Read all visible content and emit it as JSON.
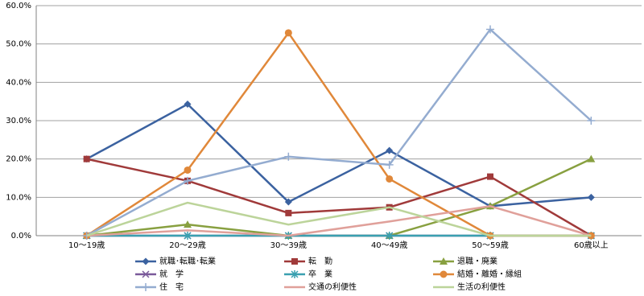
{
  "chart_data": {
    "type": "line",
    "categories": [
      "10～19歳",
      "20～29歳",
      "30～39歳",
      "40～49歳",
      "50～59歳",
      "60歳以上"
    ],
    "ylim": [
      0,
      60
    ],
    "yticks": [
      {
        "value": 0,
        "label": "0.0%"
      },
      {
        "value": 10,
        "label": "10.0%"
      },
      {
        "value": 20,
        "label": "20.0%"
      },
      {
        "value": 30,
        "label": "30.0%"
      },
      {
        "value": 40,
        "label": "40.0%"
      },
      {
        "value": 50,
        "label": "50.0%"
      },
      {
        "value": 60,
        "label": "60.0%"
      }
    ],
    "grid": true,
    "series": [
      {
        "name": "就職･転職･転業",
        "color": "#3b62a0",
        "marker": "diamond",
        "values": [
          20.0,
          34.3,
          8.8,
          22.2,
          7.7,
          10.0
        ]
      },
      {
        "name": "転　勤",
        "color": "#a03a3a",
        "marker": "square",
        "values": [
          20.0,
          14.3,
          5.9,
          7.4,
          15.4,
          0
        ]
      },
      {
        "name": "退職・廃業",
        "color": "#88a040",
        "marker": "triangle",
        "values": [
          0,
          2.9,
          0,
          0,
          7.7,
          20.0
        ]
      },
      {
        "name": "就　学",
        "color": "#7a5a9a",
        "marker": "x",
        "values": [
          0,
          0,
          0,
          0,
          0,
          0
        ]
      },
      {
        "name": "卒　業",
        "color": "#3aa0b0",
        "marker": "star",
        "values": [
          0,
          0,
          0,
          0,
          0,
          0
        ]
      },
      {
        "name": "結婚・離婚・縁組",
        "color": "#e0883a",
        "marker": "circle",
        "values": [
          0,
          17.1,
          52.9,
          14.8,
          0,
          0
        ]
      },
      {
        "name": "住　宅",
        "color": "#94acd0",
        "marker": "plus",
        "values": [
          0,
          14.3,
          20.6,
          18.5,
          53.8,
          30.0
        ]
      },
      {
        "name": "交通の利便性",
        "color": "#e0a09a",
        "marker": "none",
        "values": [
          0,
          1.4,
          0,
          3.7,
          7.7,
          0
        ]
      },
      {
        "name": "生活の利便性",
        "color": "#bcd49a",
        "marker": "none",
        "values": [
          0,
          8.6,
          2.9,
          7.4,
          0,
          0
        ]
      }
    ]
  }
}
